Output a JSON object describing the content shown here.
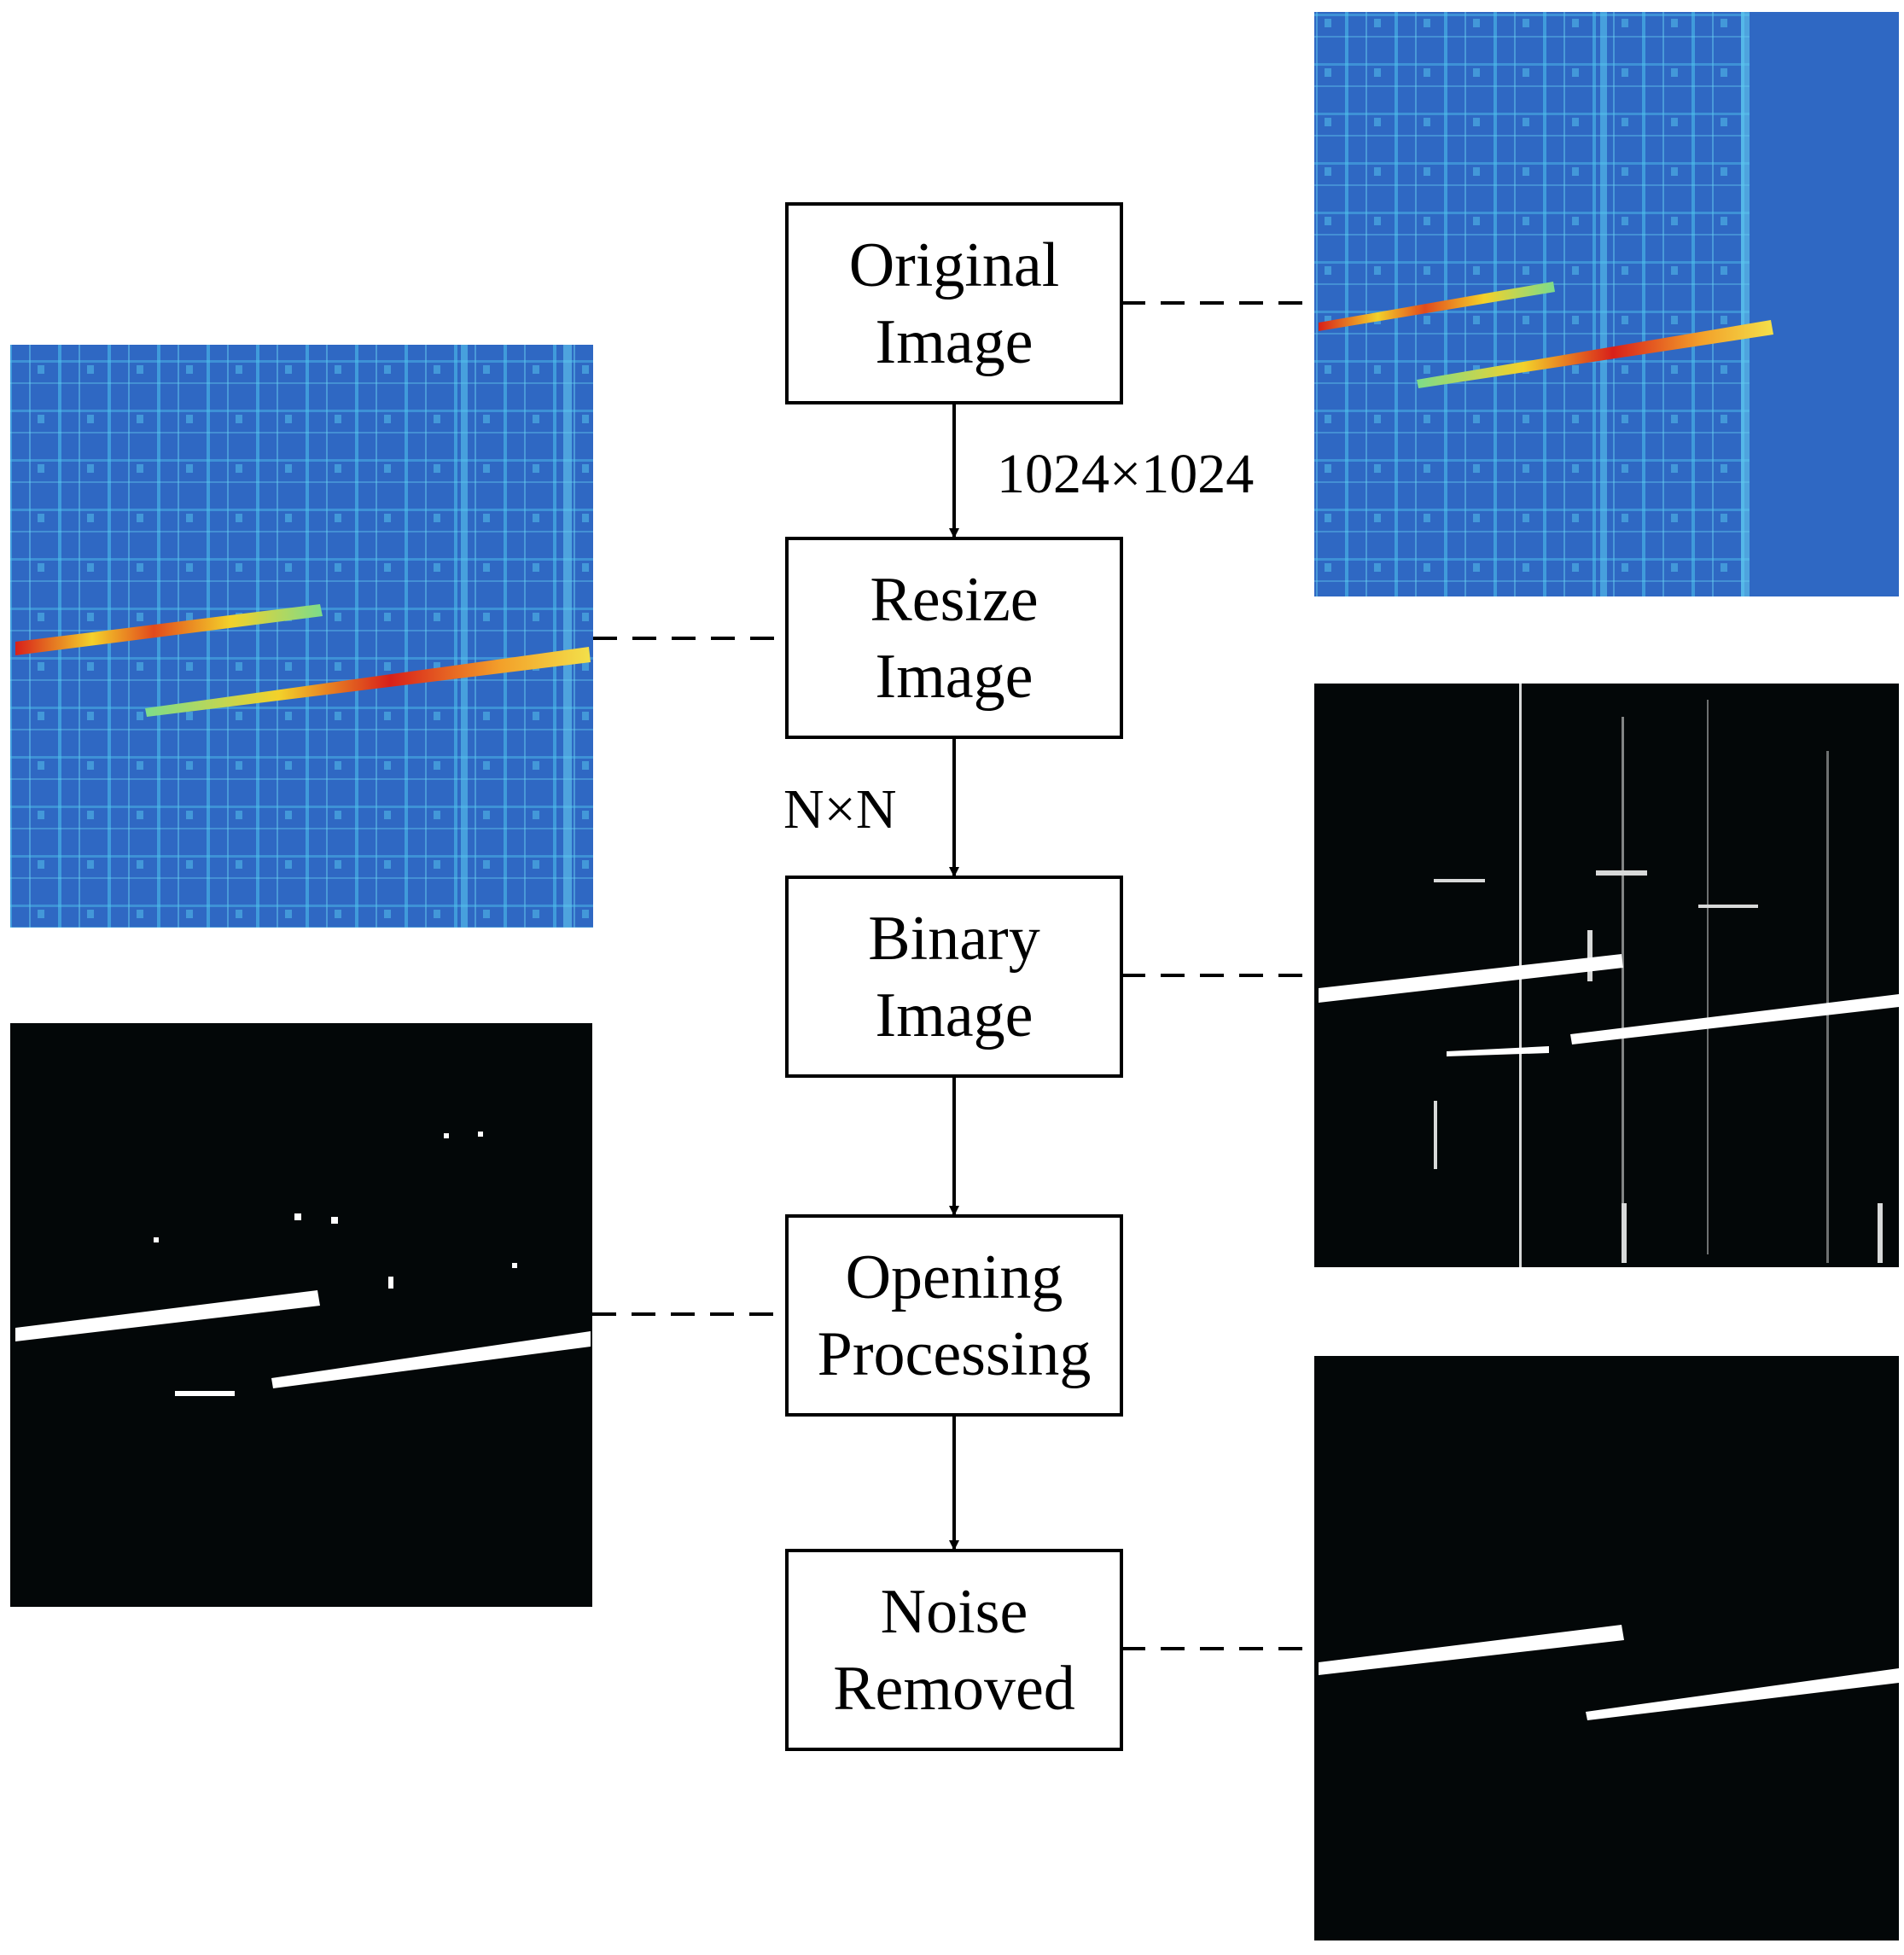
{
  "stages": [
    {
      "id": "original",
      "line1": "Original",
      "line2": "Image"
    },
    {
      "id": "resize",
      "line1": "Resize",
      "line2": "Image"
    },
    {
      "id": "binary",
      "line1": "Binary",
      "line2": "Image"
    },
    {
      "id": "opening",
      "line1": "Opening",
      "line2": "Processing"
    },
    {
      "id": "noise",
      "line1": "Noise",
      "line2": "Removed"
    }
  ],
  "edge_labels": {
    "original_to_resize": "1024×1024",
    "resize_to_binary": "N×N"
  },
  "thumbnails": [
    {
      "stage": "original",
      "kind": "heatmap",
      "colormap": "jet"
    },
    {
      "stage": "resize",
      "kind": "heatmap",
      "colormap": "jet"
    },
    {
      "stage": "binary",
      "kind": "binary",
      "colormap": "black-white"
    },
    {
      "stage": "opening",
      "kind": "binary",
      "colormap": "black-white"
    },
    {
      "stage": "noise",
      "kind": "binary",
      "colormap": "black-white"
    }
  ],
  "colors": {
    "heatmap_background": "#2f68c3",
    "heatmap_grid": "#4fc4ee",
    "crack_hot": "#d8201a",
    "crack_warm": "#f3d12a",
    "binary_background": "#030708",
    "binary_foreground": "#ffffff"
  }
}
